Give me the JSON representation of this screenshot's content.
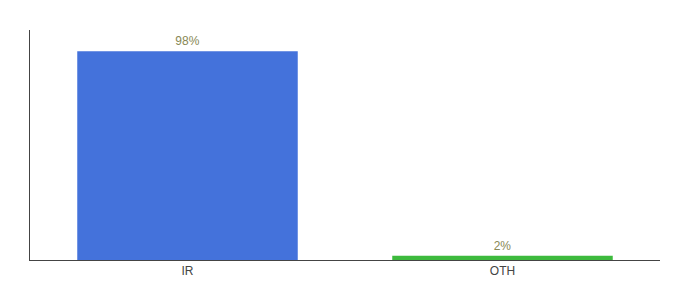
{
  "chart_data": {
    "type": "bar",
    "categories": [
      "IR",
      "OTH"
    ],
    "values": [
      98,
      2
    ],
    "value_labels": [
      "98%",
      "2%"
    ],
    "colors": [
      "#4472db",
      "#3dba3d"
    ],
    "ylim": [
      0,
      108
    ],
    "data_labels": true,
    "tick_labels": "x",
    "grid": false
  }
}
